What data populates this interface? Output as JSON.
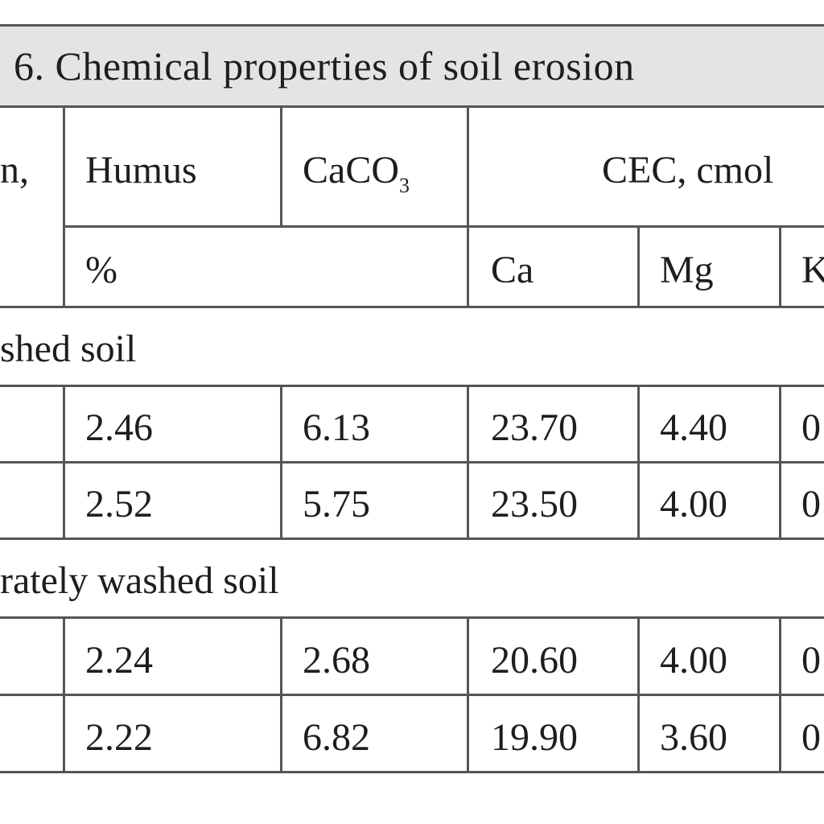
{
  "table": {
    "title": "6. Chemical properties of soil erosion",
    "header": {
      "col0_fragment": "n,",
      "humus": "Humus",
      "caco3_main": "CaCO",
      "caco3_sub": "3",
      "cec": "CEC, cmol",
      "unit_percent": "%",
      "ca": "Ca",
      "mg": "Mg",
      "k_fragment": "K"
    },
    "sections": [
      {
        "label": "shed soil",
        "rows": [
          {
            "humus": "2.46",
            "caco3": "6.13",
            "ca": "23.70",
            "mg": "4.40",
            "k": "0"
          },
          {
            "humus": "2.52",
            "caco3": "5.75",
            "ca": "23.50",
            "mg": "4.00",
            "k": "0"
          }
        ]
      },
      {
        "label": "rately washed soil",
        "rows": [
          {
            "humus": "2.24",
            "caco3": "2.68",
            "ca": "20.60",
            "mg": "4.00",
            "k": "0"
          },
          {
            "humus": "2.22",
            "caco3": "6.82",
            "ca": "19.90",
            "mg": "3.60",
            "k": "0"
          }
        ]
      }
    ]
  }
}
